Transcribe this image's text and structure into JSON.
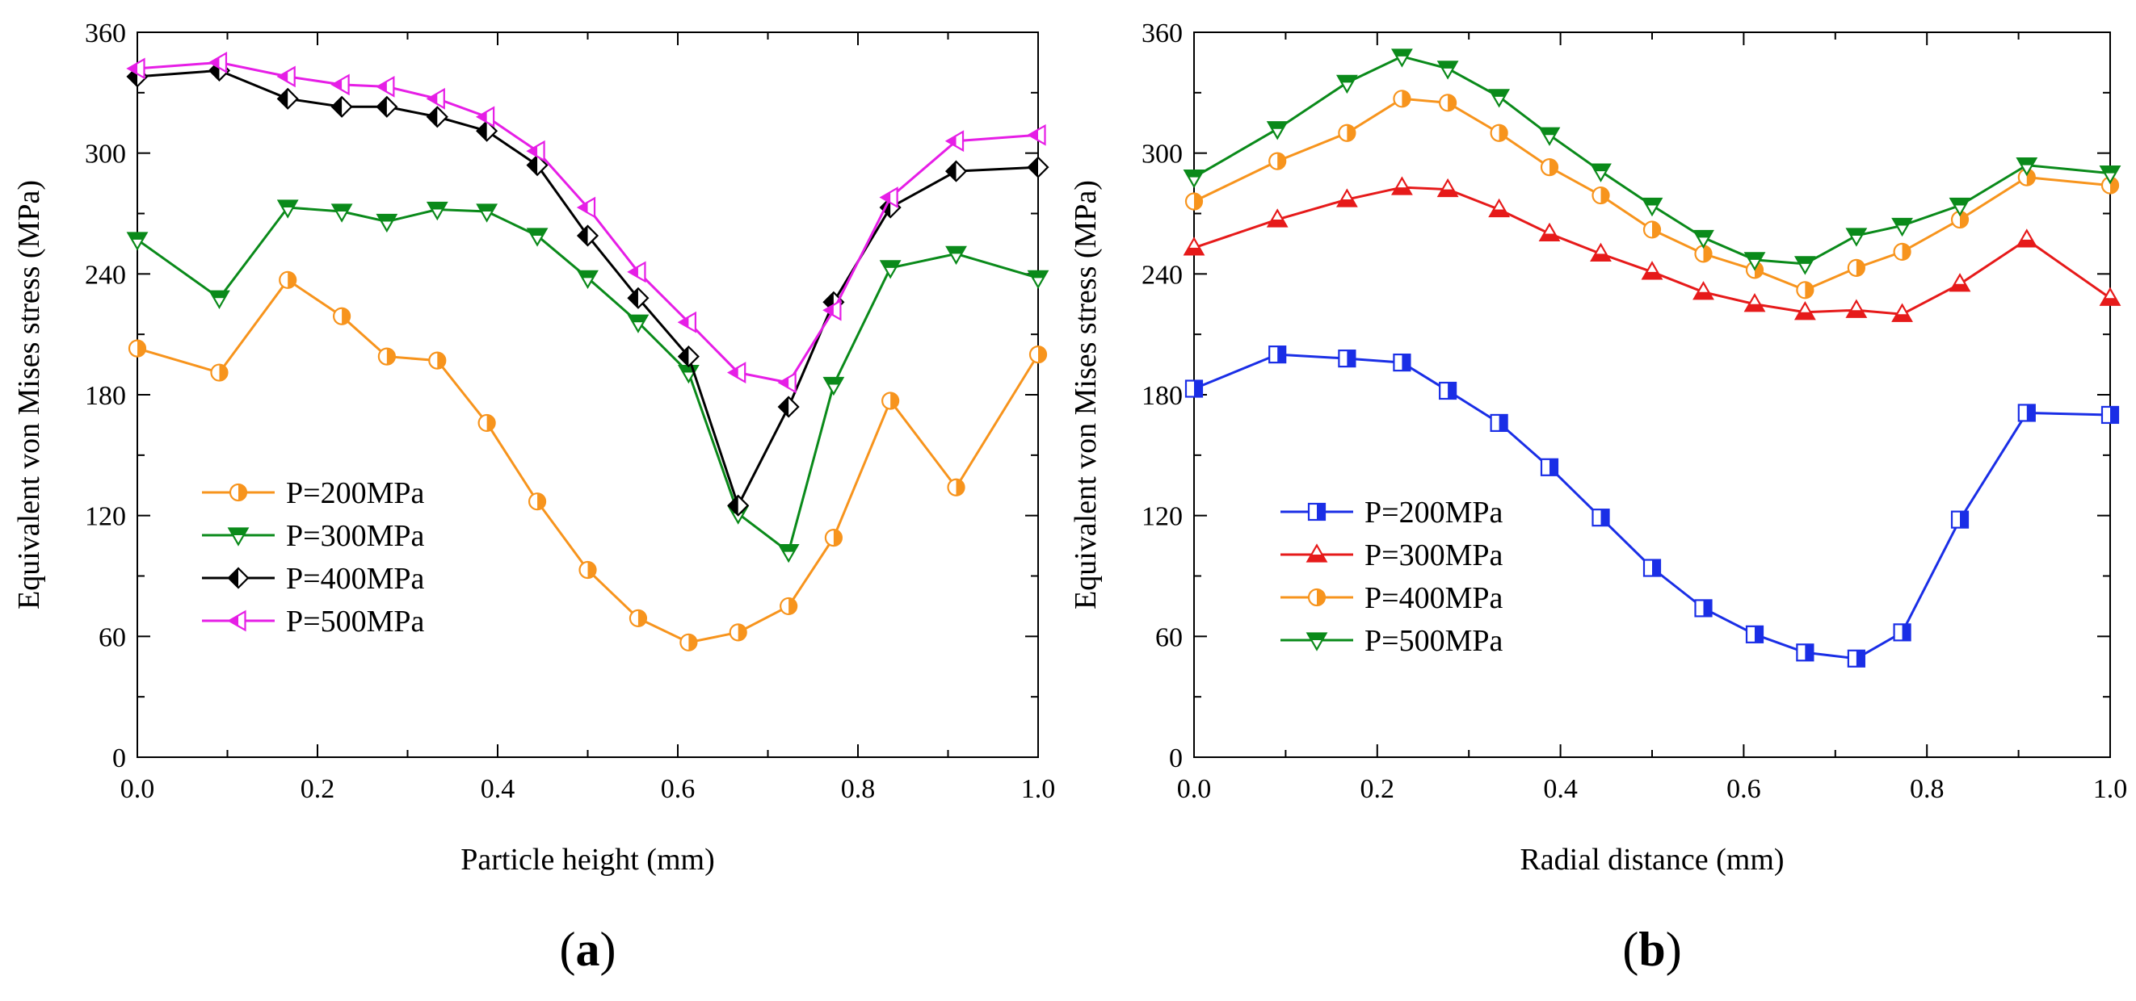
{
  "chart_data": [
    {
      "type": "line",
      "panel_label": {
        "open": "(",
        "letter": "a",
        "close": ")"
      },
      "xlabel": "Particle height (mm)",
      "ylabel": "Equivalent von Mises stress (MPa)",
      "xlim": [
        0,
        1.0
      ],
      "ylim": [
        0,
        360
      ],
      "xticks": [
        0.0,
        0.2,
        0.4,
        0.6,
        0.8,
        1.0
      ],
      "xtick_labels": [
        "0.0",
        "0.2",
        "0.4",
        "0.6",
        "0.8",
        "1.0"
      ],
      "yticks": [
        0,
        60,
        120,
        180,
        240,
        300,
        360
      ],
      "ytick_labels": [
        "0",
        "60",
        "120",
        "180",
        "240",
        "300",
        "360"
      ],
      "legend_position": "lower-left",
      "x": [
        0.0,
        0.091,
        0.167,
        0.227,
        0.277,
        0.333,
        0.388,
        0.444,
        0.5,
        0.556,
        0.612,
        0.667,
        0.723,
        0.773,
        0.836,
        0.909,
        1.0
      ],
      "series": [
        {
          "name": "P=200MPa",
          "color": "#f7941d",
          "marker": "circle-half",
          "values": [
            203,
            191,
            237,
            219,
            199,
            197,
            166,
            127,
            93,
            69,
            57,
            62,
            75,
            109,
            177,
            134,
            200
          ]
        },
        {
          "name": "P=300MPa",
          "color": "#0a8a1a",
          "marker": "triangle-down-half",
          "values": [
            257,
            228,
            273,
            271,
            266,
            272,
            271,
            259,
            238,
            216,
            191,
            121,
            102,
            185,
            243,
            250,
            238
          ]
        },
        {
          "name": "P=400MPa",
          "color": "#000000",
          "marker": "diamond-half",
          "values": [
            338,
            341,
            327,
            323,
            323,
            318,
            311,
            294,
            259,
            228,
            199,
            125,
            174,
            226,
            273,
            291,
            293
          ]
        },
        {
          "name": "P=500MPa",
          "color": "#e61ee6",
          "marker": "triangle-left-half",
          "values": [
            342,
            345,
            338,
            334,
            333,
            327,
            318,
            301,
            273,
            241,
            216,
            191,
            186,
            222,
            278,
            306,
            309
          ]
        }
      ]
    },
    {
      "type": "line",
      "panel_label": {
        "open": "(",
        "letter": "b",
        "close": ")"
      },
      "xlabel": "Radial distance (mm)",
      "ylabel": "Equivalent von Mises stress (MPa)",
      "xlim": [
        0,
        1.0
      ],
      "ylim": [
        0,
        360
      ],
      "xticks": [
        0.0,
        0.2,
        0.4,
        0.6,
        0.8,
        1.0
      ],
      "xtick_labels": [
        "0.0",
        "0.2",
        "0.4",
        "0.6",
        "0.8",
        "1.0"
      ],
      "yticks": [
        0,
        60,
        120,
        180,
        240,
        300,
        360
      ],
      "ytick_labels": [
        "0",
        "60",
        "120",
        "180",
        "240",
        "300",
        "360"
      ],
      "legend_position": "lower-left",
      "x": [
        0.0,
        0.091,
        0.167,
        0.227,
        0.277,
        0.333,
        0.388,
        0.444,
        0.5,
        0.556,
        0.612,
        0.667,
        0.723,
        0.773,
        0.836,
        0.909,
        1.0
      ],
      "series": [
        {
          "name": "P=200MPa",
          "color": "#1a2ee6",
          "marker": "square-half",
          "values": [
            183,
            200,
            198,
            196,
            182,
            166,
            144,
            119,
            94,
            74,
            61,
            52,
            49,
            62,
            118,
            171,
            170
          ]
        },
        {
          "name": "P=300MPa",
          "color": "#e61a1a",
          "marker": "triangle-up-half",
          "values": [
            253,
            267,
            277,
            283,
            282,
            272,
            260,
            250,
            241,
            231,
            225,
            221,
            222,
            220,
            235,
            257,
            228
          ]
        },
        {
          "name": "P=400MPa",
          "color": "#f7941d",
          "marker": "circle-half",
          "values": [
            276,
            296,
            310,
            327,
            325,
            310,
            293,
            279,
            262,
            250,
            242,
            232,
            243,
            251,
            267,
            288,
            284
          ]
        },
        {
          "name": "P=500MPa",
          "color": "#0a8a1a",
          "marker": "triangle-down-half",
          "values": [
            288,
            312,
            335,
            348,
            342,
            328,
            309,
            291,
            274,
            258,
            247,
            245,
            259,
            264,
            274,
            294,
            290
          ]
        }
      ]
    }
  ]
}
